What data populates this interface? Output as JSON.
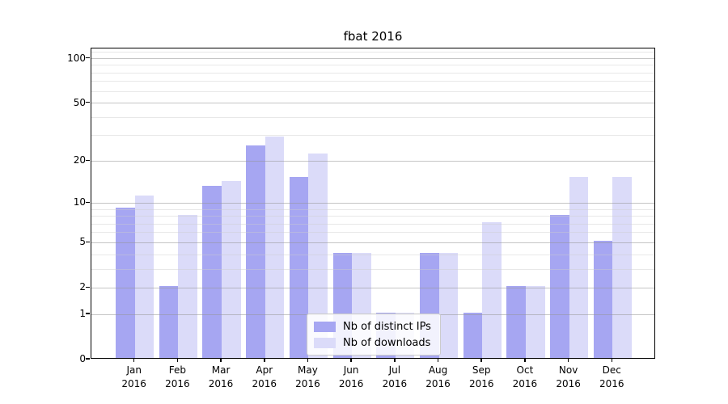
{
  "title": "fbat 2016",
  "chart_data": {
    "type": "bar",
    "title": "fbat 2016",
    "categories": [
      "Jan",
      "Feb",
      "Mar",
      "Apr",
      "May",
      "Jun",
      "Jul",
      "Aug",
      "Sep",
      "Oct",
      "Nov",
      "Dec"
    ],
    "category_year": "2016",
    "series": [
      {
        "name": "Nb of distinct IPs",
        "color": "#a6a6f2",
        "values": [
          9,
          2,
          13,
          25,
          15,
          4,
          1,
          4,
          1,
          2,
          8,
          5
        ]
      },
      {
        "name": "Nb of downloads",
        "color": "#dbdbf9",
        "values": [
          11,
          8,
          14,
          29,
          22,
          4,
          1,
          4,
          7,
          2,
          15,
          15
        ]
      }
    ],
    "xlabel": "",
    "ylabel": "",
    "yscale": "log1p",
    "ylim": [
      0,
      117
    ],
    "y_major_ticks": [
      {
        "v": 0,
        "label": "0"
      },
      {
        "v": 1,
        "label": "1"
      },
      {
        "v": 2,
        "label": "2"
      },
      {
        "v": 5,
        "label": "5"
      },
      {
        "v": 10,
        "label": "10"
      },
      {
        "v": 20,
        "label": "20"
      },
      {
        "v": 50,
        "label": "50"
      },
      {
        "v": 100,
        "label": "100"
      }
    ],
    "y_minor_ticks": [
      3,
      4,
      6,
      7,
      8,
      9,
      30,
      40,
      60,
      70,
      80,
      90,
      110
    ],
    "grid": true,
    "legend_position": "lower center",
    "colors": {
      "major_grid": "rgba(150,150,150,0.55)",
      "minor_grid": "rgba(205,205,205,0.45)",
      "axis": "#000000"
    }
  }
}
